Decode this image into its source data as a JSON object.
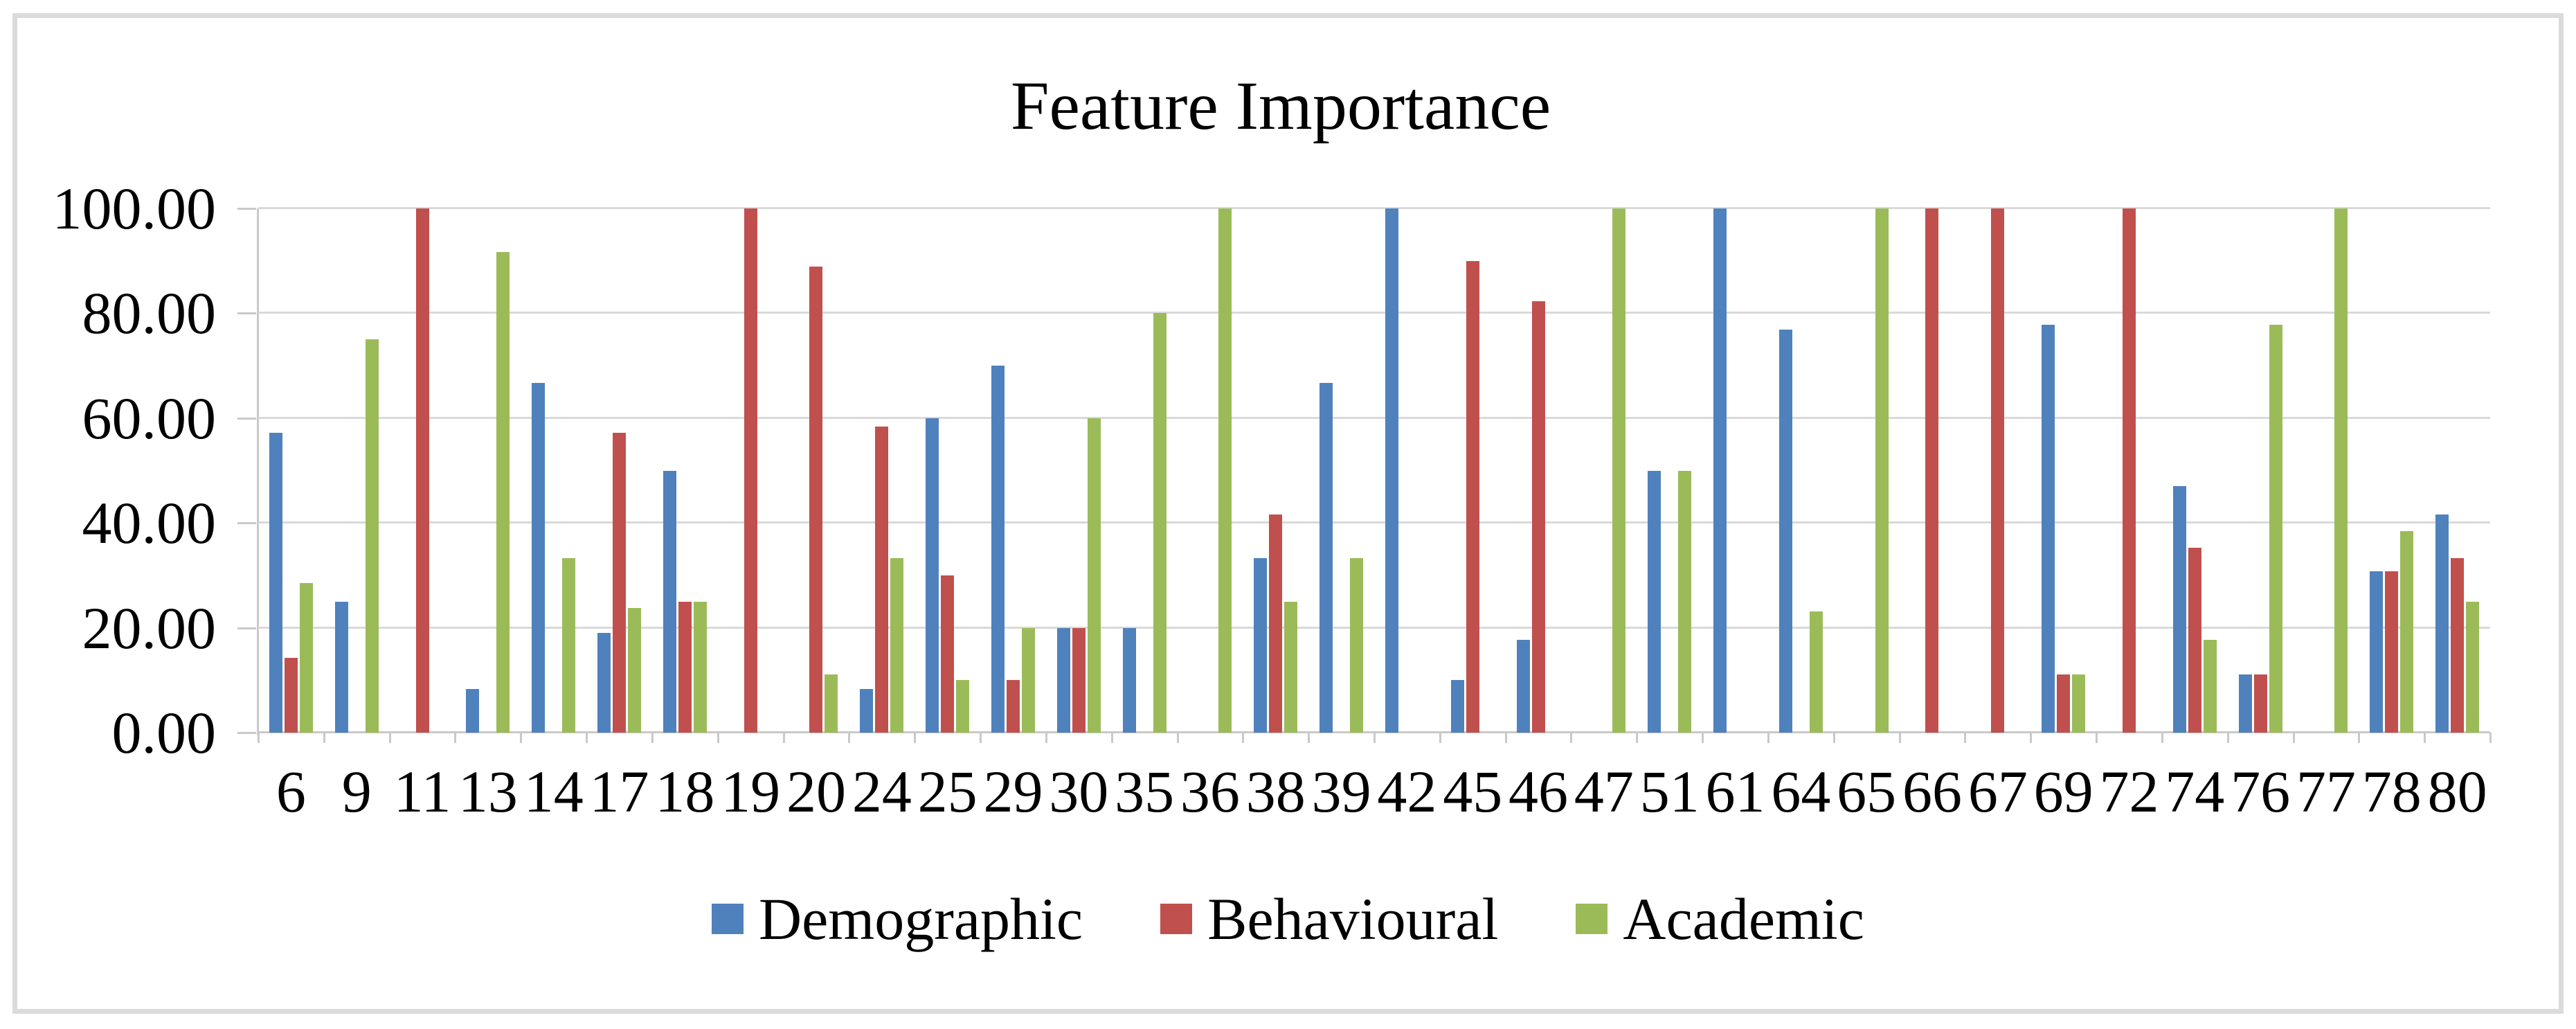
{
  "title": "Feature Importance",
  "colors": {
    "demographic": "#4F81BD",
    "behavioural": "#C0504D",
    "academic": "#9BBB59",
    "gridline": "#D9D9D9",
    "axis": "#C9C9C9",
    "frame_border": "#DBDBDB",
    "text": "#000000",
    "background": "#FFFFFF"
  },
  "chart_data": {
    "type": "bar",
    "title": "Feature Importance",
    "categories": [
      "6",
      "9",
      "11",
      "13",
      "14",
      "17",
      "18",
      "19",
      "20",
      "24",
      "25",
      "29",
      "30",
      "35",
      "36",
      "38",
      "39",
      "42",
      "45",
      "46",
      "47",
      "51",
      "61",
      "64",
      "65",
      "66",
      "67",
      "69",
      "72",
      "74",
      "76",
      "77",
      "78",
      "80"
    ],
    "series": [
      {
        "name": "Demographic",
        "color": "#4F81BD",
        "values": [
          57.14,
          25.0,
          0,
          8.33,
          66.67,
          19.05,
          50.0,
          0,
          0,
          8.33,
          60.0,
          70.0,
          20.0,
          20.0,
          0,
          33.33,
          66.67,
          100.0,
          10.0,
          17.65,
          0,
          50.0,
          100.0,
          76.92,
          0,
          0,
          0,
          77.78,
          0,
          47.06,
          11.11,
          0,
          30.77,
          41.67
        ]
      },
      {
        "name": "Behavioural",
        "color": "#C0504D",
        "values": [
          14.29,
          0,
          100.0,
          0,
          0,
          57.14,
          25.0,
          100.0,
          88.89,
          58.33,
          30.0,
          10.0,
          20.0,
          0,
          0,
          41.67,
          0,
          0,
          90.0,
          82.35,
          0,
          0,
          0,
          0,
          0,
          100.0,
          100.0,
          11.11,
          100.0,
          35.29,
          11.11,
          0,
          30.77,
          33.33
        ]
      },
      {
        "name": "Academic",
        "color": "#9BBB59",
        "values": [
          28.57,
          75.0,
          0,
          91.67,
          33.33,
          23.81,
          25.0,
          0,
          11.11,
          33.33,
          10.0,
          20.0,
          60.0,
          80.0,
          100.0,
          25.0,
          33.33,
          0,
          0,
          0,
          100.0,
          50.0,
          0,
          23.08,
          100.0,
          0,
          0,
          11.11,
          0,
          17.65,
          77.78,
          100.0,
          38.46,
          25.0
        ]
      }
    ],
    "ylim": [
      0,
      100
    ],
    "y_ticks": [
      0,
      20,
      40,
      60,
      80,
      100
    ],
    "y_tick_labels": [
      "0.00",
      "20.00",
      "40.00",
      "60.00",
      "80.00",
      "100.00"
    ],
    "grid": true,
    "legend_position": "bottom"
  }
}
